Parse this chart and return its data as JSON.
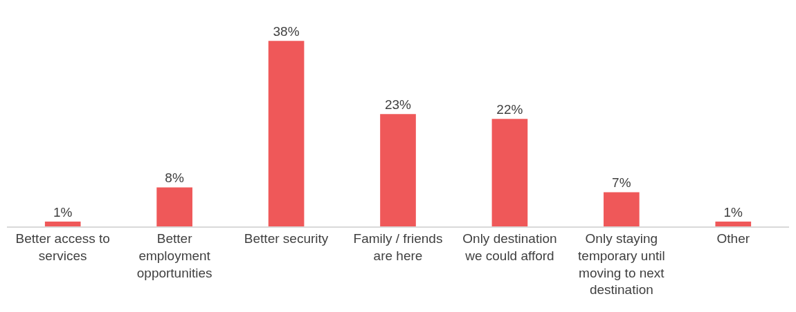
{
  "chart_data": {
    "type": "bar",
    "categories": [
      "Better access to services",
      "Better employment opportunities",
      "Better security",
      "Family / friends are here",
      "Only destination we could afford",
      "Only staying temporary until moving to next destination",
      "Other"
    ],
    "values": [
      1,
      8,
      38,
      23,
      22,
      7,
      1
    ],
    "value_labels": [
      "1%",
      "8%",
      "38%",
      "23%",
      "22%",
      "7%",
      "1%"
    ],
    "color": "#ef5859"
  }
}
